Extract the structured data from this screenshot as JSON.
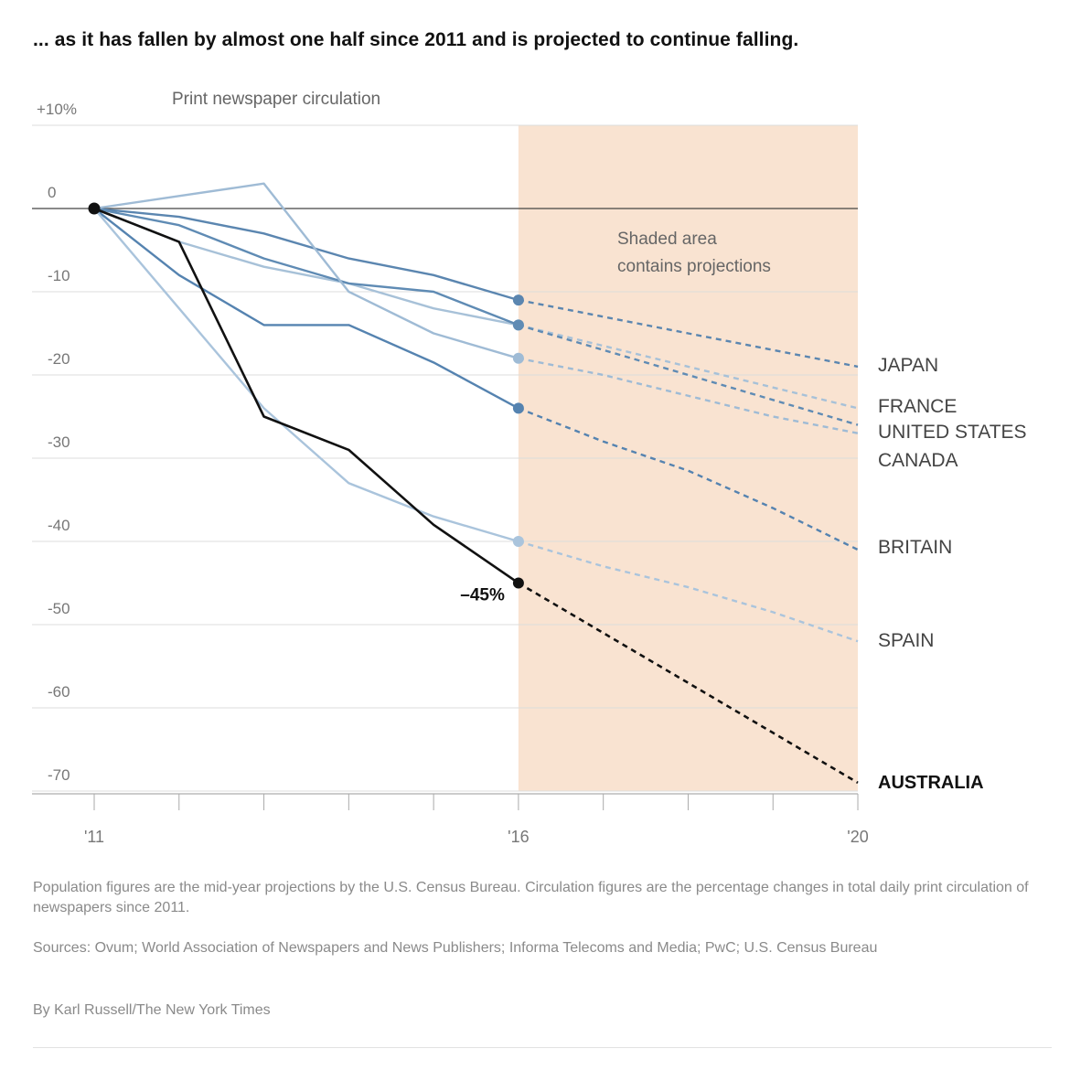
{
  "headline": "... as it has fallen by almost one half since 2011 and is projected to continue falling.",
  "chart_data": {
    "type": "line",
    "title": "Print newspaper circulation",
    "xlabel": "",
    "ylabel": "",
    "x_ticks": [
      2011,
      2012,
      2013,
      2014,
      2015,
      2016,
      2017,
      2018,
      2019,
      2020
    ],
    "x_tick_labels": [
      {
        "year": 2011,
        "label": "'11"
      },
      {
        "year": 2016,
        "label": "'16"
      },
      {
        "year": 2020,
        "label": "'20"
      }
    ],
    "xlim": [
      2011,
      2020
    ],
    "ylim": [
      -70,
      10
    ],
    "y_ticks": [
      10,
      0,
      -10,
      -20,
      -30,
      -40,
      -50,
      -60,
      -70
    ],
    "y_tick_labels": [
      "+10%",
      "0",
      "-10",
      "-20",
      "-30",
      "-40",
      "-50",
      "-60",
      "-70"
    ],
    "grid": true,
    "projection_region": {
      "from": 2016,
      "to": 2020,
      "color": "#f9e3d1",
      "label": "Shaded area contains projections"
    },
    "annotation": {
      "series": "AUSTRALIA",
      "year": 2016,
      "text": "–45%"
    },
    "x": [
      2011,
      2012,
      2013,
      2014,
      2015,
      2016,
      2017,
      2018,
      2019,
      2020
    ],
    "series": [
      {
        "name": "JAPAN",
        "color": "#5b86b0",
        "values": [
          0,
          -1,
          -3,
          -6,
          -8,
          -11,
          -13,
          -15,
          -17,
          -19
        ]
      },
      {
        "name": "FRANCE",
        "color": "#a7c1d8",
        "values": [
          0,
          -4,
          -7,
          -9,
          -12,
          -14,
          -16.5,
          -19,
          -21.5,
          -24
        ]
      },
      {
        "name": "UNITED STATES",
        "color": "#5f8bb4",
        "values": [
          0,
          -2,
          -6,
          -9,
          -10,
          -14,
          -17,
          -20,
          -23,
          -26
        ]
      },
      {
        "name": "CANADA",
        "color": "#9fbbd5",
        "values": [
          0,
          1.5,
          3,
          -10,
          -15,
          -18,
          -20,
          -22.5,
          -25,
          -27
        ]
      },
      {
        "name": "BRITAIN",
        "color": "#5583b0",
        "values": [
          0,
          -8,
          -14,
          -14,
          -18.5,
          -24,
          -28,
          -31.5,
          -36,
          -41
        ]
      },
      {
        "name": "SPAIN",
        "color": "#aac4dc",
        "values": [
          0,
          -12,
          -24,
          -33,
          -37,
          -40,
          -43,
          -45.5,
          -48.5,
          -52
        ]
      },
      {
        "name": "AUSTRALIA",
        "color": "#111111",
        "values": [
          0,
          -4,
          -25,
          -29,
          -38,
          -45,
          -51,
          -57,
          -63,
          -69
        ],
        "highlight": true
      }
    ],
    "projection_start_index": 5
  },
  "notes": {
    "note1": "Population figures are the mid-year projections by the U.S. Census Bureau. Circulation figures are the percentage changes in total daily print circulation of newspapers since 2011.",
    "note2": "Sources: Ovum; World Association of Newspapers and News Publishers; Informa Telecoms and Media; PwC; U.S. Census Bureau",
    "byline": "By Karl Russell/The New York Times"
  }
}
